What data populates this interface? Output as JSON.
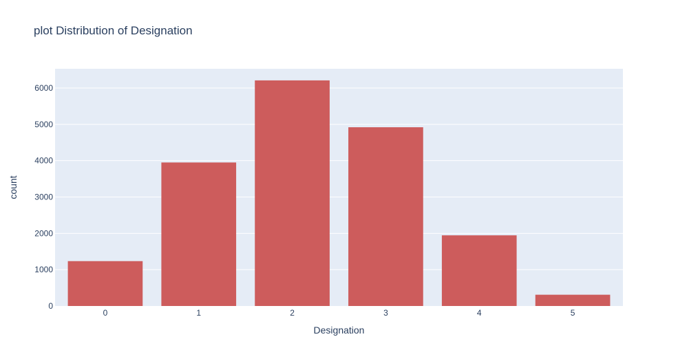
{
  "chart_data": {
    "type": "bar",
    "title": "plot Distribution of Designation",
    "xlabel": "Designation",
    "ylabel": "count",
    "categories": [
      "0",
      "1",
      "2",
      "3",
      "4",
      "5"
    ],
    "values": [
      1235,
      3950,
      6210,
      4920,
      1945,
      310
    ],
    "ylim": [
      0,
      6530
    ],
    "yticks": [
      0,
      1000,
      2000,
      3000,
      4000,
      5000,
      6000
    ],
    "ytick_labels": [
      "0",
      "1000",
      "2000",
      "3000",
      "4000",
      "5000",
      "6000"
    ],
    "grid": true,
    "legend": "none",
    "colors": {
      "bar": "#cd5c5c",
      "plot_bg": "#e5ecf6",
      "grid": "#ffffff",
      "text": "#2a3f5f",
      "page_bg": "#ffffff"
    }
  }
}
